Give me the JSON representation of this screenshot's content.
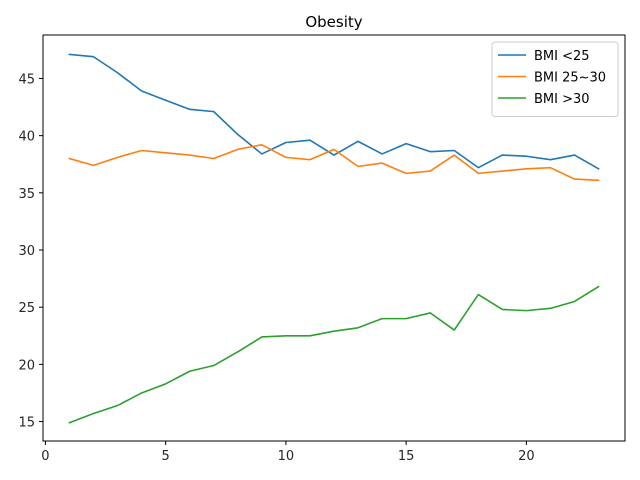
{
  "chart_data": {
    "type": "line",
    "title": "Obesity",
    "xlabel": "",
    "ylabel": "",
    "xlim": [
      -0.1,
      24.1
    ],
    "ylim": [
      13.3,
      48.8
    ],
    "xticks": [
      0,
      5,
      10,
      15,
      20
    ],
    "yticks": [
      15,
      20,
      25,
      30,
      35,
      40,
      45
    ],
    "grid": false,
    "legend": "top-right",
    "x": [
      1,
      2,
      3,
      4,
      5,
      6,
      7,
      8,
      9,
      10,
      11,
      12,
      13,
      14,
      15,
      16,
      17,
      18,
      19,
      20,
      21,
      22,
      23
    ],
    "series": [
      {
        "name": "BMI <25",
        "color": "#1f77b4",
        "values": [
          47.1,
          46.9,
          45.5,
          43.9,
          43.1,
          42.3,
          42.1,
          40.1,
          38.4,
          39.4,
          39.6,
          38.3,
          39.5,
          38.4,
          39.3,
          38.6,
          38.7,
          37.2,
          38.3,
          38.2,
          37.9,
          38.3,
          37.1
        ]
      },
      {
        "name": "BMI 25~30",
        "color": "#ff7f0e",
        "values": [
          38.0,
          37.4,
          38.1,
          38.7,
          38.5,
          38.3,
          38.0,
          38.8,
          39.2,
          38.1,
          37.9,
          38.8,
          37.3,
          37.6,
          36.7,
          36.9,
          38.3,
          36.7,
          36.9,
          37.1,
          37.2,
          36.2,
          36.1
        ]
      },
      {
        "name": "BMI >30",
        "color": "#2ca02c",
        "values": [
          14.9,
          15.7,
          16.4,
          17.5,
          18.3,
          19.4,
          19.9,
          21.1,
          22.4,
          22.5,
          22.5,
          22.9,
          23.2,
          24.0,
          24.0,
          24.5,
          23.0,
          26.1,
          24.8,
          24.7,
          24.9,
          25.5,
          26.8
        ]
      }
    ]
  }
}
